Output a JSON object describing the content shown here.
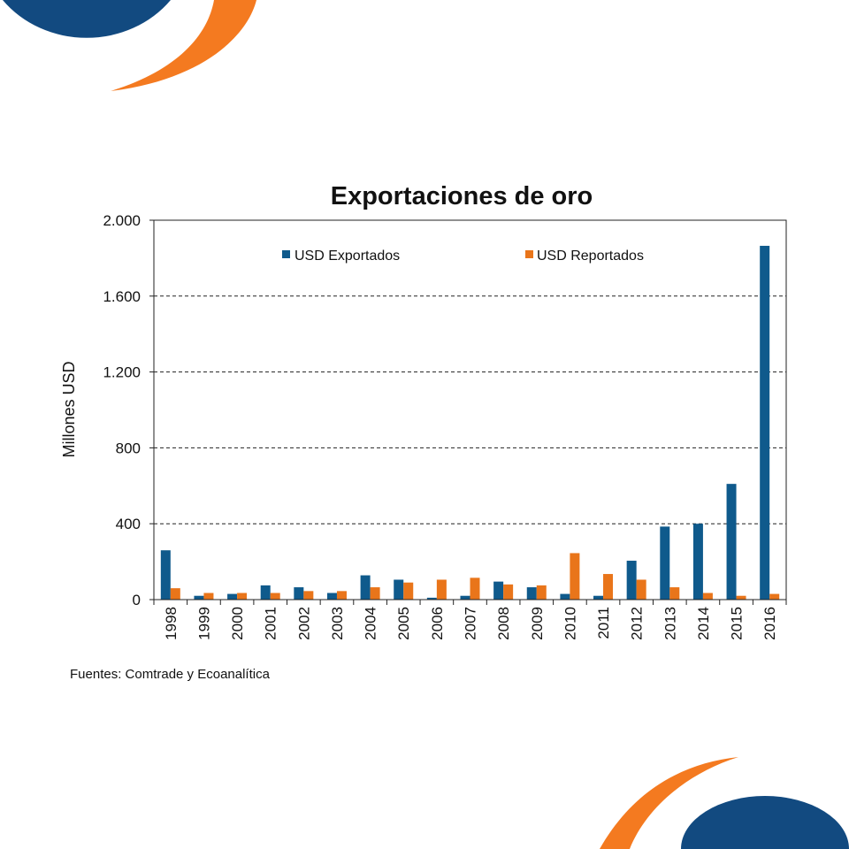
{
  "colors": {
    "navy": "#124a80",
    "orange": "#f47a20",
    "series_exportados": "#0f5a8c",
    "series_reportados": "#e9751a"
  },
  "chart_data": {
    "type": "bar",
    "title": "Exportaciones de oro",
    "ylabel": "Millones USD",
    "xlabel": "",
    "ylim": [
      0,
      2000
    ],
    "yticks": [
      0,
      400,
      800,
      1200,
      1600,
      2000
    ],
    "ytick_labels": [
      "0",
      "400",
      "800",
      "1.200",
      "1.600",
      "2.000"
    ],
    "grid": "horizontal-dashed",
    "legend_position": "top",
    "categories": [
      "1998",
      "1999",
      "2000",
      "2001",
      "2002",
      "2003",
      "2004",
      "2005",
      "2006",
      "2007",
      "2008",
      "2009",
      "2010",
      "2011",
      "2012",
      "2013",
      "2014",
      "2015",
      "2016"
    ],
    "series": [
      {
        "name": "USD Exportados",
        "color": "#0f5a8c",
        "values": [
          260,
          20,
          30,
          75,
          65,
          35,
          128,
          105,
          10,
          20,
          95,
          65,
          30,
          20,
          205,
          385,
          400,
          610,
          1865
        ]
      },
      {
        "name": "USD Reportados",
        "color": "#e9751a",
        "values": [
          60,
          35,
          35,
          35,
          45,
          45,
          65,
          90,
          105,
          115,
          80,
          75,
          245,
          135,
          105,
          65,
          35,
          20,
          30
        ]
      }
    ]
  },
  "source": "Fuentes: Comtrade y Ecoanalítica"
}
